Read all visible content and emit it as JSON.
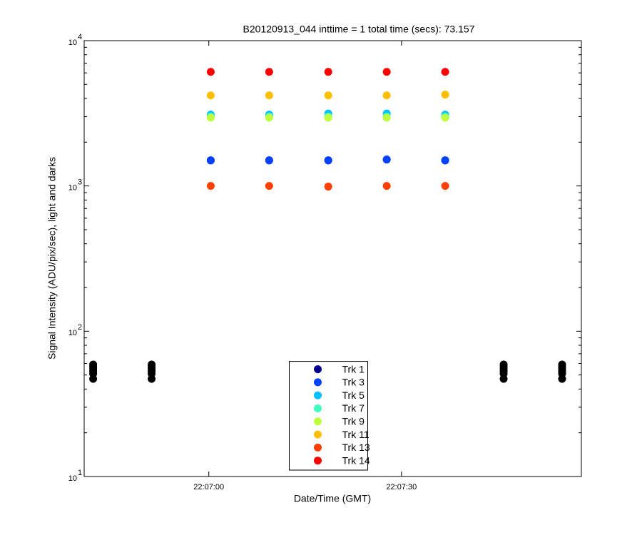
{
  "chart_data": {
    "type": "scatter",
    "title": "B20120913_044 inttime = 1 total time (secs): 73.157",
    "xlabel": "Date/Time (GMT)",
    "ylabel": "Signal Intensity (ADU/pix/sec), light and darks",
    "log_y": true,
    "xlim": [
      79600.6,
      79678
    ],
    "xticks": [
      {
        "value": 79620,
        "label": "22:07:00"
      },
      {
        "value": 79650,
        "label": "22:07:30"
      }
    ],
    "ylim": [
      10,
      10000
    ],
    "yticks": [
      {
        "value": 10,
        "label": "10",
        "exponent": "1"
      },
      {
        "value": 100,
        "label": "10",
        "exponent": "2"
      },
      {
        "value": 1000,
        "label": "10",
        "exponent": "3"
      },
      {
        "value": 10000,
        "label": "10",
        "exponent": "4"
      }
    ],
    "legend": "bottom-center",
    "series": [
      {
        "color": "#000000",
        "x": [
          79602,
          79602,
          79602,
          79602,
          79602,
          79602,
          79611.1,
          79611.1,
          79611.1,
          79611.1,
          79611.1,
          79611.1,
          79665.9,
          79665.9,
          79665.9,
          79665.9,
          79665.9,
          79665.9,
          79675,
          79675,
          79675,
          79675,
          79675,
          79675
        ],
        "values": [
          47,
          51,
          53,
          55,
          57,
          59,
          47,
          51,
          53,
          55,
          57,
          59,
          47,
          51,
          53,
          55,
          57,
          59,
          47,
          51,
          53,
          55,
          57,
          59
        ]
      },
      {
        "name": "Trk 1",
        "color": "#00008f",
        "x": [
          79620.3,
          79629.4,
          79638.6,
          79647.7,
          79656.8
        ],
        "values": [
          1500,
          1500,
          1500,
          1520,
          1500
        ]
      },
      {
        "name": "Trk 3",
        "color": "#0040ff",
        "x": [
          79620.3,
          79629.4,
          79638.6,
          79647.7,
          79656.8
        ],
        "values": [
          1500,
          1500,
          1500,
          1520,
          1500
        ]
      },
      {
        "name": "Trk 5",
        "color": "#00bfff",
        "x": [
          79620.3,
          79629.4,
          79638.6,
          79647.7,
          79656.8
        ],
        "values": [
          3100,
          3100,
          3150,
          3150,
          3100
        ]
      },
      {
        "name": "Trk 7",
        "color": "#40ffbf",
        "x": [
          79620.3,
          79629.4,
          79638.6,
          79647.7,
          79656.8
        ],
        "values": [
          3000,
          3000,
          3000,
          3000,
          3000
        ]
      },
      {
        "name": "Trk 9",
        "color": "#bfff40",
        "x": [
          79620.3,
          79629.4,
          79638.6,
          79647.7,
          79656.8
        ],
        "values": [
          2950,
          2950,
          2950,
          2950,
          2950
        ]
      },
      {
        "name": "Trk 11",
        "color": "#ffbf00",
        "x": [
          79620.3,
          79629.4,
          79638.6,
          79647.7,
          79656.8
        ],
        "values": [
          4200,
          4200,
          4200,
          4200,
          4250
        ]
      },
      {
        "name": "Trk 13",
        "color": "#ff4000",
        "x": [
          79620.3,
          79629.4,
          79638.6,
          79647.7,
          79656.8
        ],
        "values": [
          1000,
          1000,
          990,
          1000,
          1000
        ]
      },
      {
        "name": "Trk 14",
        "color": "#ff0000",
        "x": [
          79620.3,
          79629.4,
          79638.6,
          79647.7,
          79656.8
        ],
        "values": [
          6100,
          6100,
          6100,
          6100,
          6100
        ]
      }
    ]
  }
}
